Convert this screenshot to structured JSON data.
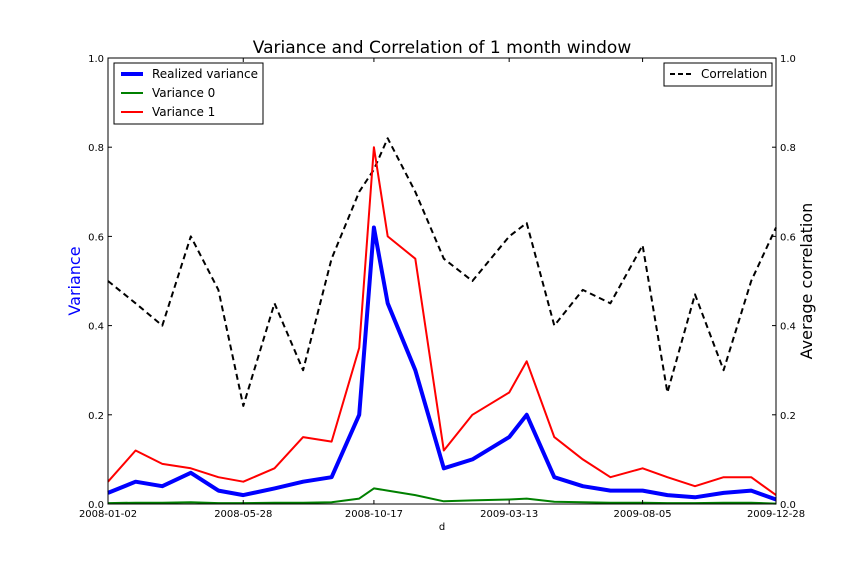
{
  "chart_data": {
    "type": "line",
    "title": "Variance and Correlation of 1 month window",
    "xlabel": "d",
    "ylabel_left": "Variance",
    "ylabel_right": "Average correlation",
    "ylim_left": [
      0,
      1
    ],
    "ylim_right": [
      0,
      1
    ],
    "x_ticks": [
      "2008-01-02",
      "2008-05-28",
      "2008-10-17",
      "2009-03-13",
      "2009-08-05",
      "2009-12-28"
    ],
    "y_ticks_left": [
      "0.0",
      "0.2",
      "0.4",
      "0.6",
      "0.8",
      "1.0"
    ],
    "y_ticks_right": [
      "0.0",
      "0.2",
      "0.4",
      "0.6",
      "0.8",
      "1.0"
    ],
    "grid": false,
    "colors": {
      "realized": "#0000ff",
      "variance0": "#008000",
      "variance1": "#ff0000",
      "correlation": "#000000",
      "ylabel_left": "#0000ff"
    },
    "legend_left": [
      "Realized variance",
      "Variance 0",
      "Variance 1"
    ],
    "legend_right": [
      "Correlation"
    ],
    "x": [
      "2008-01-02",
      "2008-02-01",
      "2008-03-01",
      "2008-04-01",
      "2008-05-01",
      "2008-05-28",
      "2008-07-01",
      "2008-08-01",
      "2008-09-01",
      "2008-10-01",
      "2008-10-17",
      "2008-11-01",
      "2008-12-01",
      "2009-01-01",
      "2009-02-01",
      "2009-03-13",
      "2009-04-01",
      "2009-05-01",
      "2009-06-01",
      "2009-07-01",
      "2009-08-05",
      "2009-09-01",
      "2009-10-01",
      "2009-11-01",
      "2009-12-01",
      "2009-12-28"
    ],
    "series": [
      {
        "name": "Realized variance",
        "values": [
          0.025,
          0.05,
          0.04,
          0.07,
          0.03,
          0.02,
          0.035,
          0.05,
          0.06,
          0.2,
          0.62,
          0.45,
          0.3,
          0.08,
          0.1,
          0.15,
          0.2,
          0.06,
          0.04,
          0.03,
          0.03,
          0.02,
          0.015,
          0.025,
          0.03,
          0.01
        ]
      },
      {
        "name": "Variance 0",
        "values": [
          0.002,
          0.003,
          0.003,
          0.004,
          0.002,
          0.002,
          0.003,
          0.003,
          0.004,
          0.012,
          0.035,
          0.03,
          0.02,
          0.006,
          0.008,
          0.01,
          0.012,
          0.005,
          0.004,
          0.003,
          0.003,
          0.002,
          0.002,
          0.003,
          0.003,
          0.001
        ]
      },
      {
        "name": "Variance 1",
        "values": [
          0.05,
          0.12,
          0.09,
          0.08,
          0.06,
          0.05,
          0.08,
          0.15,
          0.14,
          0.35,
          0.8,
          0.6,
          0.55,
          0.12,
          0.2,
          0.25,
          0.32,
          0.15,
          0.1,
          0.06,
          0.08,
          0.06,
          0.04,
          0.06,
          0.06,
          0.02
        ]
      },
      {
        "name": "Correlation",
        "axis": "right",
        "values": [
          0.5,
          0.45,
          0.4,
          0.6,
          0.48,
          0.22,
          0.45,
          0.3,
          0.55,
          0.7,
          0.75,
          0.82,
          0.7,
          0.55,
          0.5,
          0.6,
          0.63,
          0.4,
          0.48,
          0.45,
          0.58,
          0.25,
          0.47,
          0.3,
          0.5,
          0.62
        ]
      }
    ]
  }
}
